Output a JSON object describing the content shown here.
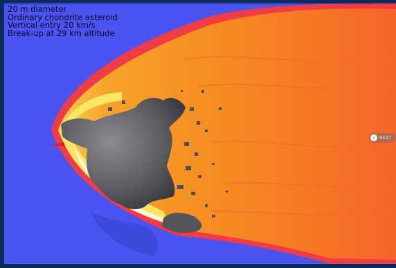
{
  "caption": {
    "lines": [
      "20 m diameter",
      "Ordinary chondrite asteroid",
      "Vertical entry 20 km/s",
      "Break-up at 29 km altitude"
    ]
  },
  "nav": {
    "next_label": "NEXT",
    "next_icon": "chevron-right-icon"
  },
  "colors": {
    "background_blue": "#4b53f0",
    "plume_red": "#f0421e",
    "plume_orange": "#f6891f",
    "shock_yellow": "#fbe566",
    "asteroid_gray": "#5c5c62",
    "frame_navy": "#0d2b5a"
  }
}
